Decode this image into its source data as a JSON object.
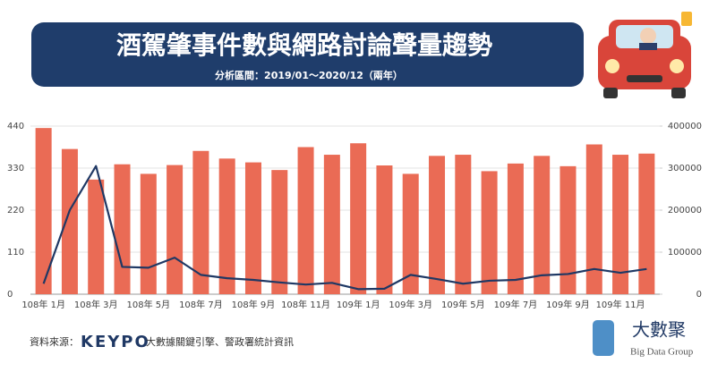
{
  "chart_data": {
    "type": "bar_line",
    "title": "酒駕肇事件數與網路討論聲量趨勢",
    "subtitle": "分析區間：2019/01～2020/12（兩年）",
    "categories": [
      "108年 1月",
      null,
      "108年 3月",
      null,
      "108年 5月",
      null,
      "108年 7月",
      null,
      "108年 9月",
      null,
      "108年 11月",
      null,
      "109年 1月",
      null,
      "109年 3月",
      null,
      "109年 5月",
      null,
      "109年 7月",
      null,
      "109年 9月",
      null,
      "109年 11月",
      null
    ],
    "series": [
      {
        "type": "bar",
        "color": "#ea6b55",
        "values": [
          435,
          380,
          300,
          340,
          315,
          338,
          375,
          355,
          345,
          325,
          385,
          365,
          395,
          337,
          315,
          362,
          365,
          322,
          342,
          362,
          335,
          392,
          365,
          368
        ]
      },
      {
        "type": "line",
        "axis": "y2",
        "color": "#1f3864",
        "values": [
          25000,
          200000,
          305000,
          65000,
          63000,
          87000,
          46000,
          38000,
          34000,
          28000,
          23000,
          27000,
          12000,
          13000,
          46000,
          36000,
          25000,
          32000,
          34000,
          45000,
          48000,
          60000,
          51000,
          60000
        ]
      }
    ],
    "ylim": [
      0,
      440
    ],
    "yticks": [
      0,
      110,
      220,
      330,
      440
    ],
    "y2lim": [
      0,
      400000
    ],
    "y2ticks": [
      0,
      100000,
      200000,
      300000,
      400000
    ],
    "grid": true
  },
  "footer": {
    "source_label": "資料來源：",
    "brand": "KEYPO",
    "source": "大數據關鍵引擎、警政署統計資訊",
    "logo": "大數聚",
    "logo_sub": "Big Data Group"
  }
}
